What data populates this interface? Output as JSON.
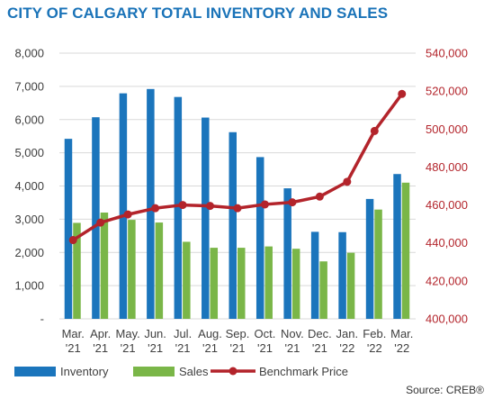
{
  "title": "CITY OF CALGARY TOTAL INVENTORY AND SALES",
  "source": "Source: CREB®",
  "colors": {
    "inventory": "#1b75bc",
    "sales": "#7ab648",
    "benchmark": "#b3242b",
    "title": "#1a73b8",
    "grid": "#d9d9d9"
  },
  "chart_data": {
    "type": "bar",
    "title": "CITY OF CALGARY TOTAL INVENTORY AND SALES",
    "categories": [
      [
        "Mar.",
        "'21"
      ],
      [
        "Apr.",
        "'21"
      ],
      [
        "May.",
        "'21"
      ],
      [
        "Jun.",
        "'21"
      ],
      [
        "Jul.",
        "'21"
      ],
      [
        "Aug.",
        "'21"
      ],
      [
        "Sep.",
        "'21"
      ],
      [
        "Oct.",
        "'21"
      ],
      [
        "Nov.",
        "'21"
      ],
      [
        "Dec.",
        "'21"
      ],
      [
        "Jan.",
        "'22"
      ],
      [
        "Feb.",
        "'22"
      ],
      [
        "Mar.",
        "'22"
      ]
    ],
    "left_axis": {
      "ticks": [
        "-",
        "1,000",
        "2,000",
        "3,000",
        "4,000",
        "5,000",
        "6,000",
        "7,000",
        "8,000"
      ],
      "range": [
        0,
        8000
      ]
    },
    "right_axis": {
      "ticks": [
        "400,000",
        "420,000",
        "440,000",
        "460,000",
        "480,000",
        "500,000",
        "520,000",
        "540,000"
      ],
      "range": [
        400000,
        540000
      ]
    },
    "grid": true,
    "legend_position": "bottom",
    "series": [
      {
        "name": "Inventory",
        "kind": "bar",
        "axis": "left",
        "values": [
          5420,
          6070,
          6790,
          6920,
          6680,
          6060,
          5620,
          4870,
          3930,
          2620,
          2610,
          3610,
          4360
        ]
      },
      {
        "name": "Sales",
        "kind": "bar",
        "axis": "left",
        "values": [
          2890,
          3200,
          2980,
          2900,
          2320,
          2140,
          2140,
          2180,
          2110,
          1730,
          1990,
          3290,
          4100
        ]
      },
      {
        "name": "Benchmark Price",
        "kind": "line",
        "axis": "right",
        "values": [
          441500,
          450700,
          455000,
          458300,
          460000,
          459500,
          458300,
          460300,
          461400,
          464400,
          472200,
          499000,
          518500
        ]
      }
    ]
  }
}
